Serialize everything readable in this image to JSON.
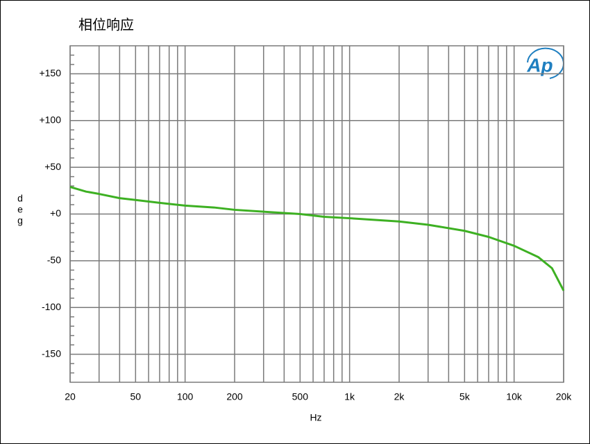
{
  "chart_data": {
    "type": "line",
    "title": "相位响应",
    "xlabel": "Hz",
    "ylabel": "deg",
    "logo": "Ap",
    "xscale": "log",
    "grid": true,
    "xlim": [
      20,
      20000
    ],
    "ylim": [
      -180,
      180
    ],
    "xticks": [
      20,
      50,
      100,
      200,
      500,
      {
        "value": 1000,
        "label": "1k"
      },
      {
        "value": 2000,
        "label": "2k"
      },
      {
        "value": 5000,
        "label": "5k"
      },
      {
        "value": 10000,
        "label": "10k"
      },
      {
        "value": 20000,
        "label": "20k"
      }
    ],
    "xminor": [
      30,
      40,
      60,
      70,
      80,
      90,
      300,
      400,
      600,
      700,
      800,
      900,
      3000,
      4000,
      6000,
      7000,
      8000,
      9000
    ],
    "yticks": [
      {
        "value": 150,
        "label": "+150"
      },
      {
        "value": 100,
        "label": "+100"
      },
      {
        "value": 50,
        "label": "+50"
      },
      {
        "value": 0,
        "label": "+0"
      },
      -50,
      -100,
      -150
    ],
    "yminor": [
      -170,
      -160,
      -140,
      -130,
      -120,
      -110,
      -90,
      -80,
      -70,
      -60,
      -40,
      -30,
      -20,
      -10,
      10,
      20,
      30,
      40,
      60,
      70,
      80,
      90,
      110,
      120,
      130,
      140,
      160,
      170
    ],
    "series": [
      {
        "color": "#3db022",
        "x": [
          20,
          25,
          30,
          40,
          50,
          70,
          100,
          150,
          200,
          300,
          500,
          700,
          1000,
          2000,
          3000,
          5000,
          7000,
          10000,
          14000,
          17000,
          20000
        ],
        "values": [
          29,
          24,
          21.5,
          17,
          15,
          12,
          9,
          7,
          4.5,
          2.5,
          0,
          -3,
          -4.5,
          -8,
          -11.5,
          -18,
          -24.5,
          -34,
          -46,
          -58,
          -82
        ]
      }
    ]
  }
}
